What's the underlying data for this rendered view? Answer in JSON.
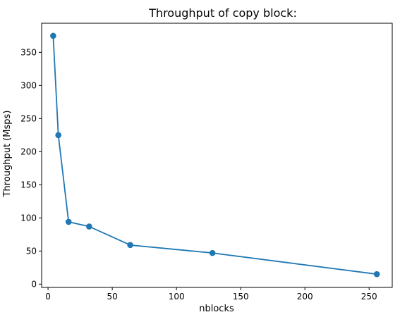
{
  "chart_data": {
    "type": "line",
    "title": "Throughput of copy block:",
    "xlabel": "nblocks",
    "ylabel": "Throughput (Msps)",
    "xlim": [
      -5,
      268
    ],
    "ylim": [
      -5,
      394
    ],
    "xticks": [
      0,
      50,
      100,
      150,
      200,
      250
    ],
    "yticks": [
      0,
      50,
      100,
      150,
      200,
      250,
      300,
      350
    ],
    "grid": false,
    "series": [
      {
        "x": [
          4,
          8,
          16,
          32,
          64,
          128,
          256
        ],
        "y": [
          375,
          225,
          94,
          87,
          59,
          47,
          15
        ],
        "color": "#1f77b4",
        "marker": "circle"
      }
    ]
  }
}
